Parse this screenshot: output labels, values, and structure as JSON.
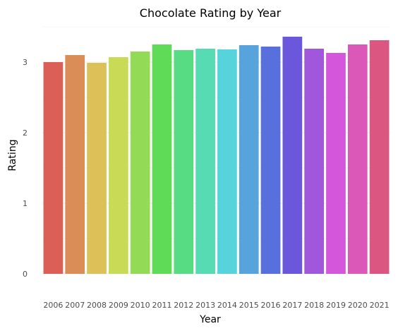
{
  "chart_data": {
    "type": "bar",
    "title": "Chocolate Rating by Year",
    "xlabel": "Year",
    "ylabel": "Rating",
    "categories": [
      "2006",
      "2007",
      "2008",
      "2009",
      "2010",
      "2011",
      "2012",
      "2013",
      "2014",
      "2015",
      "2016",
      "2017",
      "2018",
      "2019",
      "2020",
      "2021"
    ],
    "values": [
      3.0,
      3.1,
      2.99,
      3.07,
      3.15,
      3.25,
      3.17,
      3.19,
      3.18,
      3.24,
      3.22,
      3.36,
      3.19,
      3.13,
      3.25,
      3.31
    ],
    "colors": [
      "#db5f57",
      "#db8d57",
      "#dbc157",
      "#c8db57",
      "#93db57",
      "#5fdb57",
      "#57db83",
      "#57dbb3",
      "#57d3db",
      "#57a3db",
      "#5770db",
      "#6b57db",
      "#a057db",
      "#d457db",
      "#db57b8",
      "#db5782"
    ],
    "ylim": [
      0,
      3.5
    ],
    "yticks": [
      0,
      1,
      2,
      3
    ],
    "grid": true,
    "legend": "none"
  }
}
